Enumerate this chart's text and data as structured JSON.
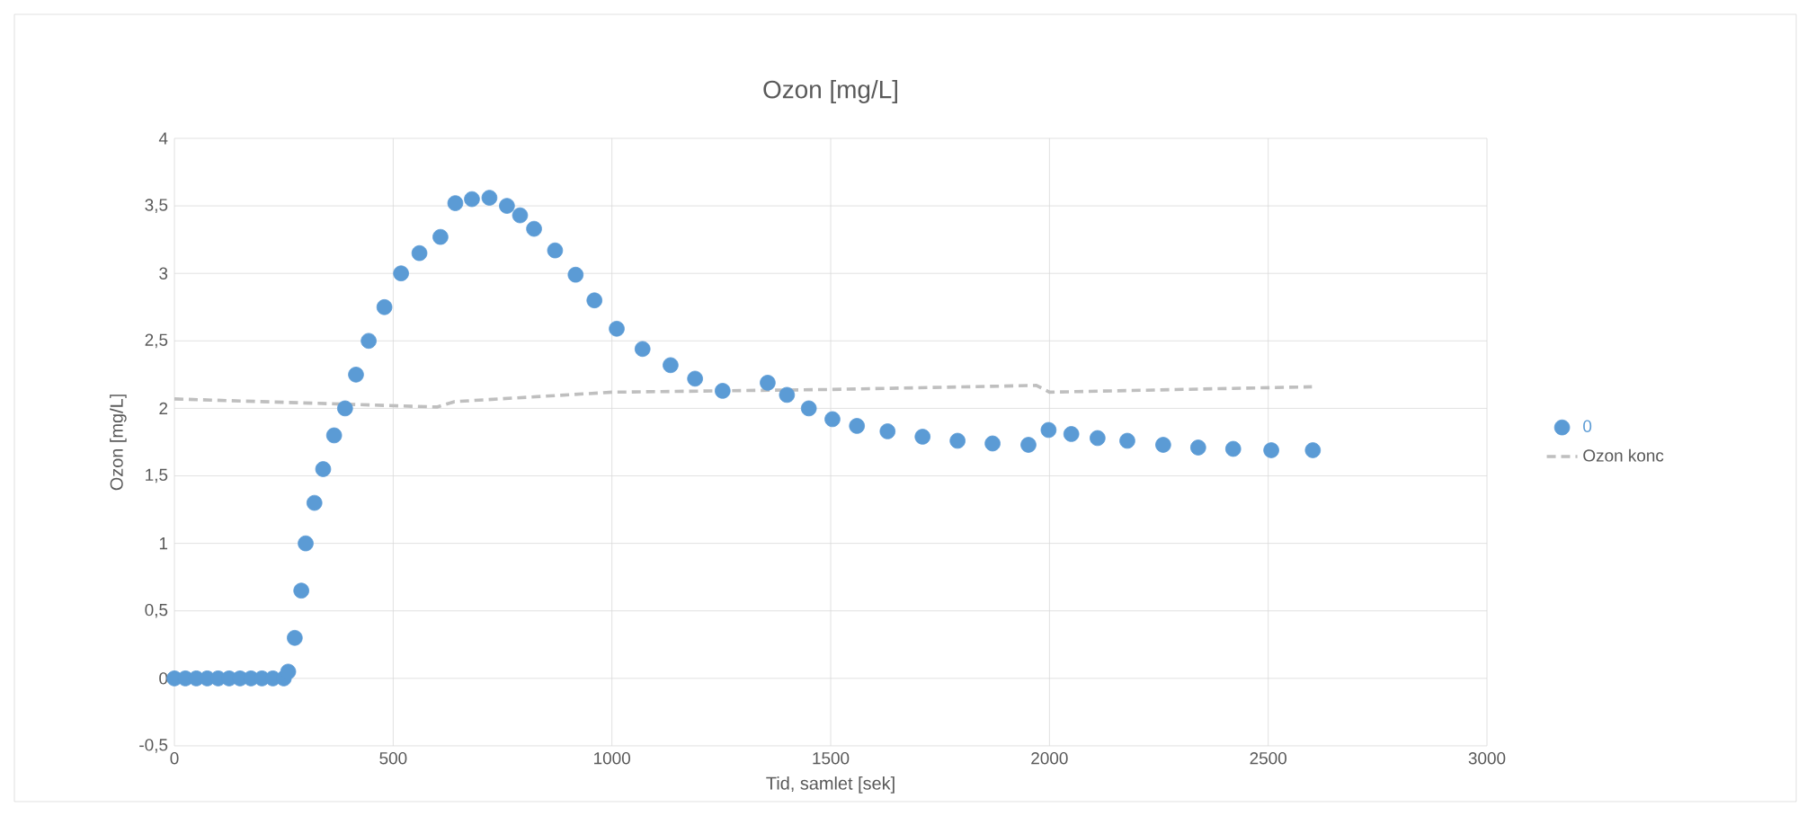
{
  "chart_data": {
    "type": "scatter",
    "title": "Ozon [mg/L]",
    "xlabel": "Tid, samlet [sek]",
    "ylabel": "Ozon [mg/L]",
    "series": [
      {
        "name": "0",
        "color": "#5b9bd5",
        "x": [
          0,
          25,
          50,
          75,
          100,
          125,
          150,
          175,
          200,
          225,
          250,
          260,
          275,
          290,
          300,
          320,
          340,
          365,
          390,
          415,
          444,
          480,
          518,
          560,
          608,
          642,
          680,
          720,
          760,
          790,
          822,
          870,
          917,
          960,
          1011,
          1070,
          1134,
          1190,
          1253,
          1356,
          1400,
          1450,
          1504,
          1560,
          1630,
          1710,
          1790,
          1870,
          1952,
          1998,
          2050,
          2110,
          2178,
          2260,
          2340,
          2420,
          2507,
          2602
        ],
        "values": [
          0,
          0,
          0,
          0,
          0,
          0,
          0,
          0,
          0,
          0,
          0,
          0.05,
          0.3,
          0.65,
          1.0,
          1.3,
          1.55,
          1.8,
          2.0,
          2.25,
          2.5,
          2.75,
          3.0,
          3.15,
          3.27,
          3.52,
          3.55,
          3.56,
          3.5,
          3.43,
          3.33,
          3.17,
          2.99,
          2.8,
          2.59,
          2.44,
          2.32,
          2.22,
          2.13,
          2.19,
          2.1,
          2.0,
          1.92,
          1.87,
          1.83,
          1.79,
          1.76,
          1.74,
          1.73,
          1.84,
          1.81,
          1.78,
          1.76,
          1.73,
          1.71,
          1.7,
          1.69,
          1.69
        ]
      },
      {
        "name": "Ozon konc",
        "type": "line",
        "color": "#bfbfbf",
        "line_style": "dashed",
        "marker": "none",
        "x": [
          0,
          600,
          640,
          1000,
          1500,
          1970,
          2000,
          2600
        ],
        "values": [
          2.07,
          2.01,
          2.05,
          2.12,
          2.14,
          2.17,
          2.12,
          2.16
        ]
      }
    ],
    "xlim": [
      0,
      3000
    ],
    "xticks": [
      0,
      500,
      1000,
      1500,
      2000,
      2500,
      3000
    ],
    "ylim": [
      -0.5,
      4
    ],
    "yticks": [
      {
        "value": -0.5,
        "label": "-0,5"
      },
      0,
      {
        "value": 0.5,
        "label": "0,5"
      },
      1,
      {
        "value": 1.5,
        "label": "1,5"
      },
      2,
      {
        "value": 2.5,
        "label": "2,5"
      },
      3,
      {
        "value": 3.5,
        "label": "3,5"
      },
      4
    ],
    "grid": true,
    "legend": "right"
  }
}
